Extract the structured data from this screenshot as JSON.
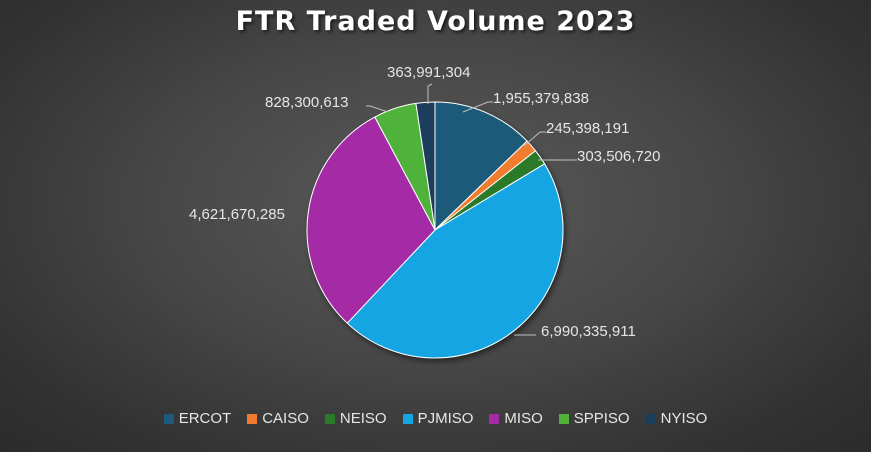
{
  "chart_data": {
    "type": "pie",
    "title": "FTR Traded Volume 2023",
    "categories": [
      "ERCOT",
      "CAISO",
      "NEISO",
      "PJMISO",
      "MISO",
      "SPPISO",
      "NYISO"
    ],
    "values": [
      1955379838,
      245398191,
      303506720,
      6990335911,
      4621670285,
      828300613,
      363991304
    ],
    "labels": [
      "1,955,379,838",
      "245,398,191",
      "303,506,720",
      "6,990,335,911",
      "4,621,670,285",
      "828,300,613",
      "363,991,304"
    ],
    "colors": [
      "#1f5a7a",
      "#f07b2f",
      "#2a7a2a",
      "#16a5e3",
      "#a52aa5",
      "#4fb33a",
      "#1a3d5c"
    ],
    "legend_position": "bottom",
    "background": "#404040"
  }
}
